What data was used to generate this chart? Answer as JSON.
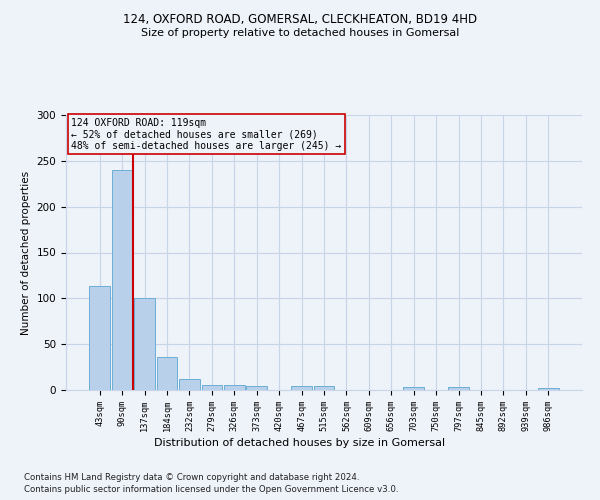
{
  "title1": "124, OXFORD ROAD, GOMERSAL, CLECKHEATON, BD19 4HD",
  "title2": "Size of property relative to detached houses in Gomersal",
  "xlabel": "Distribution of detached houses by size in Gomersal",
  "ylabel": "Number of detached properties",
  "bar_categories": [
    "43sqm",
    "90sqm",
    "137sqm",
    "184sqm",
    "232sqm",
    "279sqm",
    "326sqm",
    "373sqm",
    "420sqm",
    "467sqm",
    "515sqm",
    "562sqm",
    "609sqm",
    "656sqm",
    "703sqm",
    "750sqm",
    "797sqm",
    "845sqm",
    "892sqm",
    "939sqm",
    "986sqm"
  ],
  "bar_values": [
    114,
    240,
    100,
    36,
    12,
    5,
    5,
    4,
    0,
    4,
    4,
    0,
    0,
    0,
    3,
    0,
    3,
    0,
    0,
    0,
    2
  ],
  "bar_color": "#b8d0ea",
  "bar_edge_color": "#6baed6",
  "annotation_box_text": "124 OXFORD ROAD: 119sqm\n← 52% of detached houses are smaller (269)\n48% of semi-detached houses are larger (245) →",
  "red_line_x": 1.5,
  "vline_color": "#cc0000",
  "background_color": "#eef2f9",
  "grid_color": "#c8d4e8",
  "footnote1": "Contains HM Land Registry data © Crown copyright and database right 2024.",
  "footnote2": "Contains public sector information licensed under the Open Government Licence v3.0.",
  "ylim": [
    0,
    300
  ],
  "yticks": [
    0,
    50,
    100,
    150,
    200,
    250,
    300
  ]
}
